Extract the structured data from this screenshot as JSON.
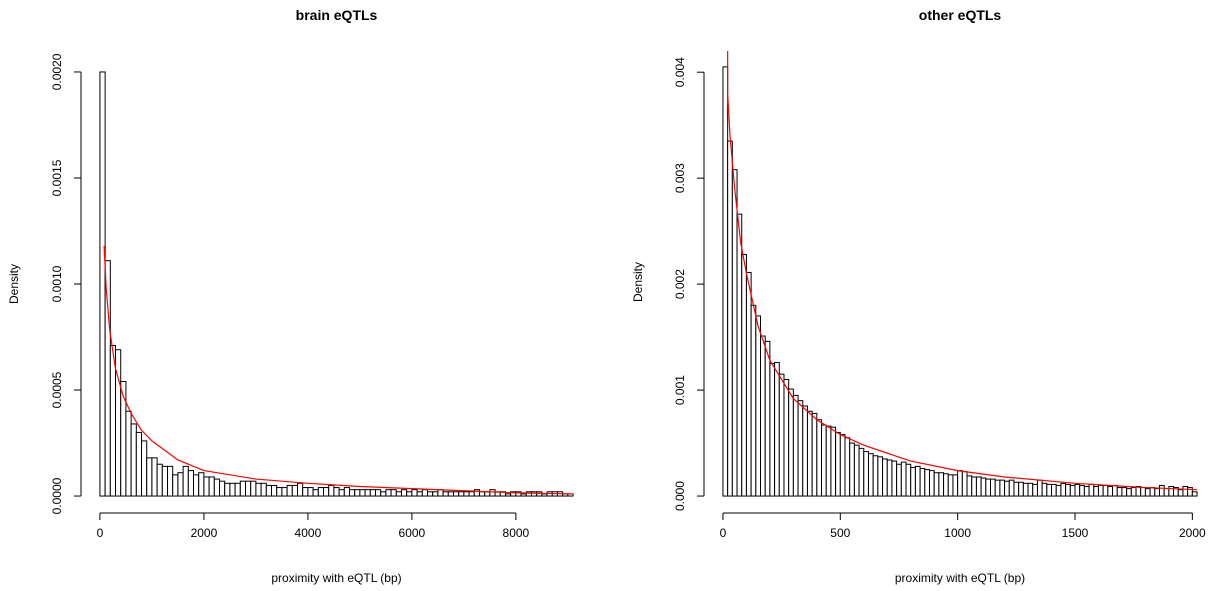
{
  "chart_data": [
    {
      "type": "histogram",
      "title": "brain eQTLs",
      "xlabel": "proximity with eQTL (bp)",
      "ylabel": "Density",
      "bins": [
        0,
        100,
        200,
        300,
        400,
        500,
        600,
        700,
        800,
        900,
        1000,
        1100,
        1200,
        1300,
        1400,
        1500,
        1600,
        1700,
        1800,
        1900,
        2000,
        2100,
        2200,
        2300,
        2400,
        2500,
        2600,
        2700,
        2800,
        2900,
        3000,
        3100,
        3200,
        3300,
        3400,
        3500,
        3600,
        3700,
        3800,
        3900,
        4000,
        4100,
        4200,
        4300,
        4400,
        4500,
        4600,
        4700,
        4800,
        4900,
        5000,
        5100,
        5200,
        5300,
        5400,
        5500,
        5600,
        5700,
        5800,
        5900,
        6000,
        6100,
        6200,
        6300,
        6400,
        6500,
        6600,
        6700,
        6800,
        6900,
        7000,
        7100,
        7200,
        7300,
        7400,
        7500,
        7600,
        7700,
        7800,
        7900,
        8000,
        8100,
        8200,
        8300,
        8400,
        8500,
        8600,
        8700,
        8800,
        8900,
        9000,
        9100
      ],
      "values": [
        0.002,
        0.00111,
        0.00071,
        0.00069,
        0.00054,
        0.0004,
        0.00034,
        0.0003,
        0.00026,
        0.00018,
        0.00018,
        0.00015,
        0.00014,
        0.00014,
        0.0001,
        0.00011,
        0.00014,
        0.00012,
        0.0001,
        0.00011,
        9e-05,
        9e-05,
        8e-05,
        7e-05,
        6e-05,
        6e-05,
        6e-05,
        7e-05,
        7e-05,
        7e-05,
        6e-05,
        6e-05,
        5e-05,
        5e-05,
        4e-05,
        4e-05,
        5e-05,
        5e-05,
        6e-05,
        4e-05,
        4e-05,
        3e-05,
        4e-05,
        4e-05,
        5e-05,
        4e-05,
        3e-05,
        4e-05,
        3e-05,
        3e-05,
        3e-05,
        3e-05,
        3e-05,
        3e-05,
        2e-05,
        3e-05,
        3e-05,
        2e-05,
        3e-05,
        2e-05,
        3e-05,
        2e-05,
        3e-05,
        2e-05,
        2e-05,
        3e-05,
        2e-05,
        2e-05,
        2e-05,
        2e-05,
        2e-05,
        2e-05,
        3e-05,
        2e-05,
        2e-05,
        3e-05,
        2e-05,
        2e-05,
        1e-05,
        2e-05,
        2e-05,
        1e-05,
        2e-05,
        2e-05,
        2e-05,
        1e-05,
        2e-05,
        2e-05,
        2e-05,
        1e-05,
        1e-05
      ],
      "color": "#ffffff",
      "edgecolor": "#000000",
      "curve": {
        "color": "#ff0000",
        "x": [
          80,
          120,
          190,
          300,
          450,
          600,
          800,
          1000,
          1500,
          2000,
          3000,
          4000,
          5000,
          6000,
          7000,
          8000,
          9100
        ],
        "y": [
          0.00118,
          0.00098,
          0.00078,
          0.0006,
          0.00047,
          0.00039,
          0.00031,
          0.00026,
          0.00017,
          0.00012,
          8e-05,
          6e-05,
          4.5e-05,
          3.5e-05,
          2.5e-05,
          1.5e-05,
          1e-05
        ]
      },
      "xlim": [
        -364,
        9464
      ],
      "ylim": [
        -8e-05,
        0.00208
      ],
      "xticks": [
        0,
        2000,
        4000,
        6000,
        8000
      ],
      "yticks": [
        {
          "value": 0,
          "label": "0.0000"
        },
        {
          "value": 0.0005,
          "label": "0.0005"
        },
        {
          "value": 0.001,
          "label": "0.0010"
        },
        {
          "value": 0.0015,
          "label": "0.0015"
        },
        {
          "value": 0.002,
          "label": "0.0020"
        }
      ]
    },
    {
      "type": "histogram",
      "title": "other eQTLs",
      "xlabel": "proximity with eQTL (bp)",
      "ylabel": "Density",
      "bins": [
        0,
        20,
        40,
        60,
        80,
        100,
        120,
        140,
        160,
        180,
        200,
        220,
        240,
        260,
        280,
        300,
        320,
        340,
        360,
        380,
        400,
        420,
        440,
        460,
        480,
        500,
        520,
        540,
        560,
        580,
        600,
        620,
        640,
        660,
        680,
        700,
        720,
        740,
        760,
        780,
        800,
        820,
        840,
        860,
        880,
        900,
        920,
        940,
        960,
        980,
        1000,
        1020,
        1040,
        1060,
        1080,
        1100,
        1120,
        1140,
        1160,
        1180,
        1200,
        1220,
        1240,
        1260,
        1280,
        1300,
        1320,
        1340,
        1360,
        1380,
        1400,
        1420,
        1440,
        1460,
        1480,
        1500,
        1520,
        1540,
        1560,
        1580,
        1600,
        1620,
        1640,
        1660,
        1680,
        1700,
        1720,
        1740,
        1760,
        1780,
        1800,
        1820,
        1840,
        1860,
        1880,
        1900,
        1920,
        1940,
        1960,
        1980,
        2000,
        2020
      ],
      "values": [
        0.00405,
        0.00335,
        0.00308,
        0.00266,
        0.00228,
        0.00211,
        0.0018,
        0.0017,
        0.00151,
        0.00146,
        0.00125,
        0.00126,
        0.00115,
        0.0011,
        0.00101,
        0.00095,
        0.0009,
        0.00085,
        0.0008,
        0.00078,
        0.00072,
        0.00067,
        0.00066,
        0.00065,
        0.0006,
        0.00058,
        0.00055,
        0.0005,
        0.00048,
        0.00045,
        0.00042,
        0.0004,
        0.00038,
        0.00037,
        0.00035,
        0.00034,
        0.00033,
        0.0003,
        0.00032,
        0.0003,
        0.00027,
        0.00028,
        0.00026,
        0.00025,
        0.00024,
        0.00022,
        0.00022,
        0.00021,
        0.0002,
        0.0002,
        0.00024,
        0.00023,
        0.00019,
        0.00018,
        0.00018,
        0.00017,
        0.00016,
        0.00016,
        0.00015,
        0.00015,
        0.00014,
        0.00015,
        0.00013,
        0.00013,
        0.00012,
        0.00012,
        0.00011,
        0.00015,
        0.00012,
        0.00011,
        0.00011,
        0.0001,
        0.00012,
        0.00011,
        0.0001,
        0.00011,
        0.0001,
        9e-05,
        0.00011,
        9e-05,
        0.0001,
        0.0001,
        9e-05,
        0.0001,
        8e-05,
        8e-05,
        7e-05,
        8e-05,
        9e-05,
        8e-05,
        7e-05,
        8e-05,
        7e-05,
        0.0001,
        7e-05,
        9e-05,
        8e-05,
        6e-05,
        9e-05,
        8e-05,
        4e-05
      ],
      "color": "#ffffff",
      "edgecolor": "#000000",
      "curve": {
        "color": "#ff0000",
        "x": [
          20,
          20,
          30,
          50,
          75,
          100,
          150,
          200,
          300,
          400,
          500,
          600,
          800,
          1000,
          1200,
          1500,
          1800,
          2020
        ],
        "y": [
          0.0042,
          0.0038,
          0.0034,
          0.0029,
          0.0024,
          0.0021,
          0.0016,
          0.00128,
          0.00092,
          0.00072,
          0.00058,
          0.00048,
          0.00033,
          0.00024,
          0.00018,
          0.00012,
          8e-05,
          6e-05
        ]
      },
      "xlim": [
        -80.8,
        2100.8
      ],
      "ylim": [
        -0.00016,
        0.0042
      ],
      "xticks": [
        0,
        500,
        1000,
        1500,
        2000
      ],
      "yticks": [
        {
          "value": 0,
          "label": "0.000"
        },
        {
          "value": 0.001,
          "label": "0.001"
        },
        {
          "value": 0.002,
          "label": "0.002"
        },
        {
          "value": 0.003,
          "label": "0.003"
        },
        {
          "value": 0.004,
          "label": "0.004"
        }
      ]
    }
  ]
}
